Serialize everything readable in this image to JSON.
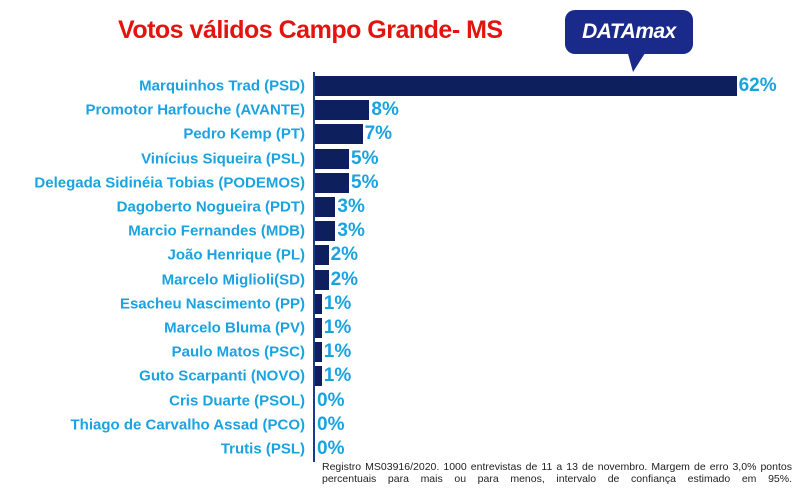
{
  "chart_data": {
    "type": "bar",
    "orientation": "horizontal",
    "title": "Votos válidos  Campo Grande- MS",
    "categories": [
      "Marquinhos Trad (PSD)",
      "Promotor Harfouche (AVANTE)",
      "Pedro Kemp (PT)",
      "Vinícius Siqueira (PSL)",
      "Delegada Sidinéia Tobias (PODEMOS)",
      "Dagoberto Nogueira (PDT)",
      "Marcio Fernandes (MDB)",
      "João Henrique (PL)",
      "Marcelo Miglioli(SD)",
      "Esacheu Nascimento (PP)",
      "Marcelo Bluma (PV)",
      "Paulo Matos (PSC)",
      "Guto Scarpanti (NOVO)",
      "Cris Duarte (PSOL)",
      "Thiago de Carvalho Assad (PCO)",
      "Trutis (PSL)"
    ],
    "values": [
      62,
      8,
      7,
      5,
      5,
      3,
      3,
      2,
      2,
      1,
      1,
      1,
      1,
      0,
      0,
      0
    ],
    "value_labels": [
      "62%",
      "8%",
      "7%",
      "5%",
      "5%",
      "3%",
      "3%",
      "2%",
      "2%",
      "1%",
      "1%",
      "1%",
      "1%",
      "0%",
      "0%",
      "0%"
    ],
    "xlabel": "",
    "ylabel": "",
    "xlim": [
      0,
      62
    ],
    "grid": false,
    "colors": {
      "bar": "#0d1f5c",
      "label": "#1aa3e0",
      "title": "#e3140f"
    }
  },
  "logo": "DATAmax",
  "note": "Registro MS03916/2020. 1000 entrevistas de 11 a 13 de novembro. Margem de erro 3,0% pontos percentuais para mais ou para menos, intervalo de confiança estimado em 95%."
}
